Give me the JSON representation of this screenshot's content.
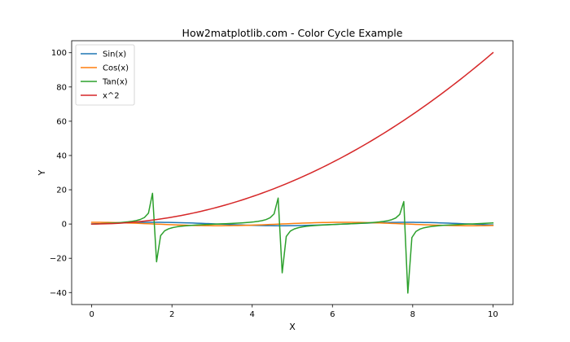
{
  "chart_data": {
    "type": "line",
    "title": "How2matplotlib.com - Color Cycle Example",
    "xlabel": "X",
    "ylabel": "Y",
    "xlim": [
      -0.5,
      10.5
    ],
    "ylim": [
      -47,
      107
    ],
    "xticks": [
      0,
      2,
      4,
      6,
      8,
      10
    ],
    "yticks": [
      -40,
      -20,
      0,
      20,
      40,
      60,
      80,
      100
    ],
    "grid": false,
    "legend_position": "upper-left",
    "x_range": [
      0,
      10
    ],
    "num_points": 100,
    "series": [
      {
        "name": "Sin(x)",
        "function": "sin",
        "color": "#1f77b4"
      },
      {
        "name": "Cos(x)",
        "function": "cos",
        "color": "#ff7f0e"
      },
      {
        "name": "Tan(x)",
        "function": "tan",
        "color": "#2ca02c"
      },
      {
        "name": "x^2",
        "function": "square",
        "color": "#d62728"
      }
    ]
  }
}
